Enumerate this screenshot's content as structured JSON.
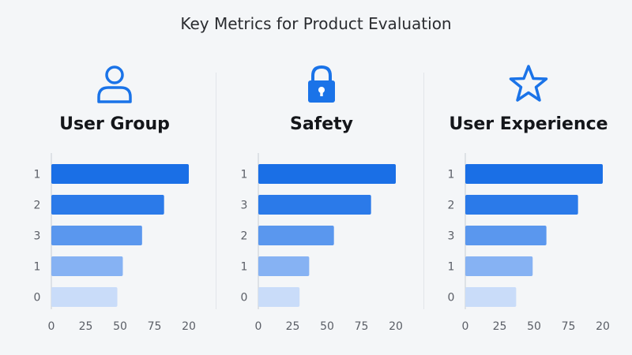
{
  "page": {
    "title": "Key Metrics for Product Evaluation"
  },
  "colors": {
    "accent": "#1a73e8",
    "bars": [
      "#1a6fe6",
      "#2b7ae9",
      "#5a97ee",
      "#86b2f3",
      "#c9dcf9"
    ]
  },
  "panels": [
    {
      "title": "User Group",
      "icon": "user-icon"
    },
    {
      "title": "Safety",
      "icon": "lock-icon"
    },
    {
      "title": "User Experience",
      "icon": "star-icon"
    }
  ],
  "chart_data": [
    {
      "type": "bar",
      "orientation": "horizontal",
      "title": "User Group",
      "categories": [
        "1",
        "2",
        "3",
        "1",
        "0"
      ],
      "values": [
        100,
        82,
        66,
        52,
        48
      ],
      "x_tick_labels": [
        "0",
        "25",
        "50",
        "75",
        "20"
      ],
      "xlim": [
        0,
        100
      ],
      "grid": false
    },
    {
      "type": "bar",
      "orientation": "horizontal",
      "title": "Safety",
      "categories": [
        "1",
        "3",
        "2",
        "1",
        "0"
      ],
      "values": [
        100,
        82,
        55,
        37,
        30
      ],
      "x_tick_labels": [
        "0",
        "25",
        "50",
        "75",
        "20"
      ],
      "xlim": [
        0,
        100
      ],
      "grid": false
    },
    {
      "type": "bar",
      "orientation": "horizontal",
      "title": "User Experience",
      "categories": [
        "1",
        "2",
        "3",
        "1",
        "0"
      ],
      "values": [
        100,
        82,
        59,
        49,
        37
      ],
      "x_tick_labels": [
        "0",
        "25",
        "50",
        "75",
        "20"
      ],
      "xlim": [
        0,
        100
      ],
      "grid": false
    }
  ]
}
